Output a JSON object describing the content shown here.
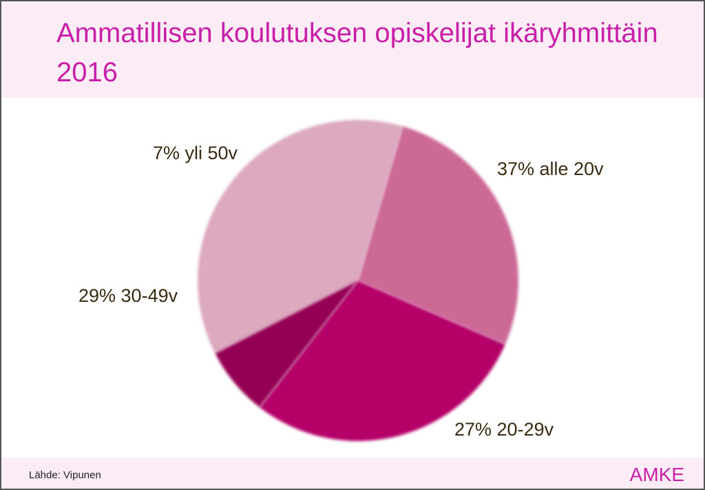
{
  "title": "Ammatillisen koulutuksen opiskelijat ikäryhmittäin 2016",
  "footer": {
    "source": "Lähde: Vipunen",
    "brand": "AMKE"
  },
  "colors": {
    "title": "#c91fa8",
    "band": "#fcecf6",
    "label": "#3a2a12"
  },
  "chart_data": {
    "type": "pie",
    "title": "Ammatillisen koulutuksen opiskelijat ikäryhmittäin 2016",
    "slices": [
      {
        "label": "37% alle 20v",
        "category": "alle 20v",
        "value": 37,
        "color": "#dca9bf"
      },
      {
        "label": "27% 20-29v",
        "category": "20-29v",
        "value": 27,
        "color": "#cc6995"
      },
      {
        "label": "29% 30-49v",
        "category": "30-49v",
        "value": 29,
        "color": "#b40068"
      },
      {
        "label": "7% yli 50v",
        "category": "yli 50v",
        "value": 7,
        "color": "#940052"
      }
    ],
    "legend": "none"
  }
}
